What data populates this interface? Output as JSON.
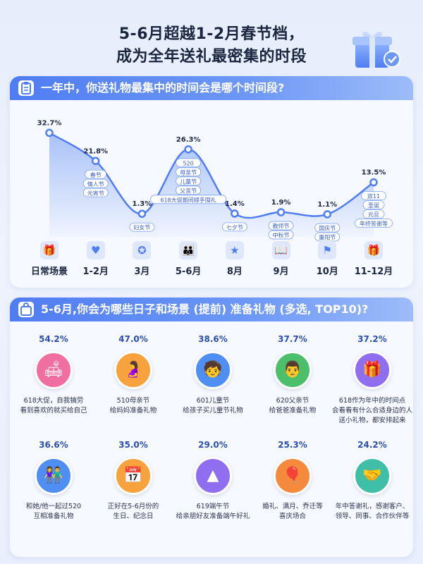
{
  "title": {
    "line1": "5-6月超越1-2月春节档，",
    "line2": "成为全年送礼最密集的时段"
  },
  "section1": {
    "heading": "一年中，你送礼物最集中的时间会是哪个时间段?"
  },
  "chart_data": {
    "type": "area",
    "title": "一年中，你送礼物最集中的时间会是哪个时间段?",
    "categories": [
      "日常场景",
      "1-2月",
      "3月",
      "5-6月",
      "8月",
      "9月",
      "10月",
      "11-12月"
    ],
    "values": [
      32.7,
      21.8,
      1.3,
      26.3,
      1.4,
      1.9,
      1.1,
      13.5
    ],
    "value_labels": [
      "32.7%",
      "21.8%",
      "1.3%",
      "26.3%",
      "1.4%",
      "1.9%",
      "1.1%",
      "13.5%"
    ],
    "tags": [
      [],
      [
        "春节",
        "情人节",
        "元宵节"
      ],
      [
        "妇女节"
      ],
      [
        "520",
        "母亲节",
        "儿童节",
        "父亲节",
        "618大促期间顺手囤礼"
      ],
      [
        "七夕节"
      ],
      [
        "教师节",
        "中秋节"
      ],
      [
        "国庆节",
        "重阳节"
      ],
      [
        "双11",
        "圣诞",
        "元旦",
        "年终答谢等"
      ]
    ],
    "icons": [
      "gift-icon",
      "heart-icon",
      "medal-icon",
      "family-icon",
      "star-icon",
      "book-icon",
      "flag-icon",
      "giftbox-icon"
    ],
    "ylim": [
      0,
      35
    ],
    "grid": false,
    "colors": {
      "line": "#4f7df2",
      "fill": "#9bb8f5"
    }
  },
  "section2": {
    "heading": "5-6月,你会为哪些日子和场景 (提前) 准备礼物 (多选, TOP10)?",
    "items": [
      {
        "pct": "54.2%",
        "desc": "618大促，自我犒劳\n看到喜欢的就买给自己",
        "icon": "armchair-icon",
        "color": "#f06fa0"
      },
      {
        "pct": "47.0%",
        "desc": "510母亲节\n给妈妈准备礼物",
        "icon": "pregnant-icon",
        "color": "#f7a23c"
      },
      {
        "pct": "38.6%",
        "desc": "601儿童节\n给孩子买儿童节礼物",
        "icon": "child-icon",
        "color": "#4f8ef2"
      },
      {
        "pct": "37.7%",
        "desc": "620父亲节\n给爸爸准备礼物",
        "icon": "father-icon",
        "color": "#4cbf6a"
      },
      {
        "pct": "37.2%",
        "desc": "618作为年中的时间点\n会看看有什么合适身边的人\n送小礼物，都安排起来",
        "icon": "gift-icon",
        "color": "#8f6ff0"
      },
      {
        "pct": "36.6%",
        "desc": "和她/他一起过520\n互相准备礼物",
        "icon": "couple-icon",
        "color": "#4f8ef2"
      },
      {
        "pct": "35.0%",
        "desc": "正好在5-6月份的\n生日、纪念日",
        "icon": "calendar-icon",
        "color": "#f7a23c"
      },
      {
        "pct": "29.0%",
        "desc": "619端午节\n给亲朋好友准备端午好礼",
        "icon": "zongzi-icon",
        "color": "#8f6ff0"
      },
      {
        "pct": "25.3%",
        "desc": "婚礼、满月、乔迁等\n喜庆场合",
        "icon": "balloon-icon",
        "color": "#f58a3c"
      },
      {
        "pct": "24.2%",
        "desc": "年中答谢礼，感谢客户、\n领导、同事、合作伙伴等",
        "icon": "handshake-icon",
        "color": "#3fbfa8"
      }
    ]
  }
}
